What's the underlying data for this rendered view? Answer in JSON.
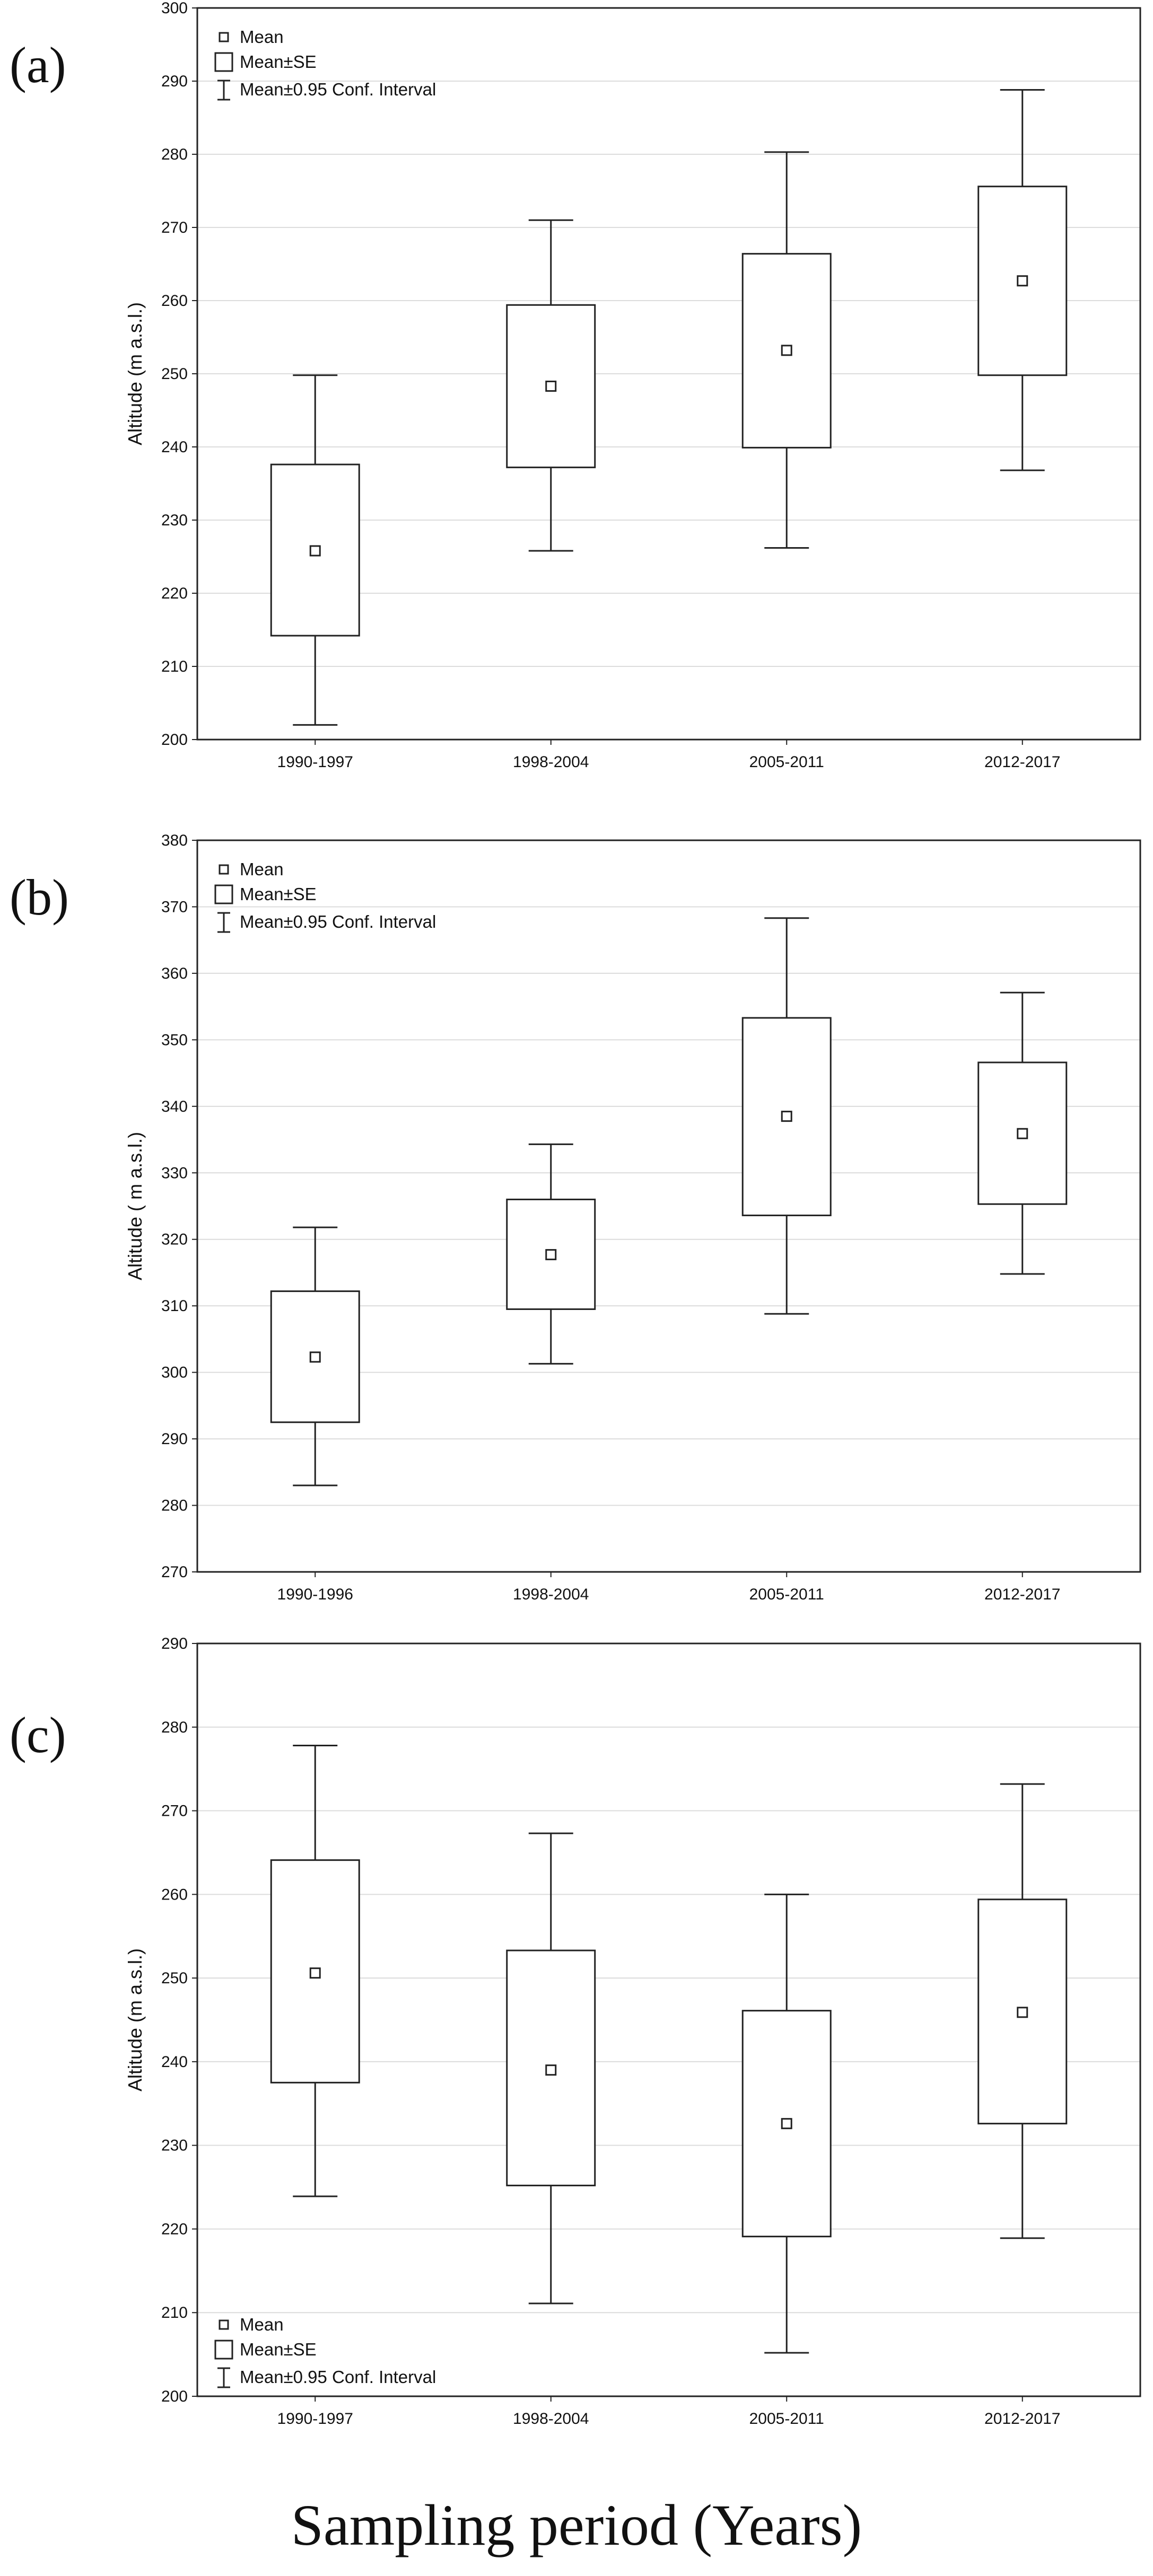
{
  "chart_data": [
    {
      "type": "box",
      "panel_label": "(a)",
      "ylabel": "Altitude (m a.s.l.)",
      "ylim": [
        200,
        300
      ],
      "yticks": [
        "200",
        "210",
        "220",
        "230",
        "240",
        "250",
        "260",
        "270",
        "280",
        "290",
        "300"
      ],
      "grid": true,
      "legend_position": "top-left",
      "legend": [
        "Mean",
        "Mean±SE",
        "Mean±0.95 Conf. Interval"
      ],
      "categories": [
        "1990-1997",
        "1998-2004",
        "2005-2011",
        "2012-2017"
      ],
      "mean": [
        225.8,
        248.3,
        253.2,
        262.7
      ],
      "se_low": [
        214.2,
        237.2,
        239.9,
        249.8
      ],
      "se_high": [
        237.6,
        259.4,
        266.4,
        275.6
      ],
      "ci_low": [
        202.0,
        225.8,
        226.2,
        236.8
      ],
      "ci_high": [
        249.8,
        271.0,
        280.3,
        288.8
      ]
    },
    {
      "type": "box",
      "panel_label": "(b)",
      "ylabel": "Altitude ( m a.s.l.)",
      "ylim": [
        270,
        380
      ],
      "yticks": [
        "270",
        "280",
        "290",
        "300",
        "310",
        "320",
        "330",
        "340",
        "350",
        "360",
        "370",
        "380"
      ],
      "grid": true,
      "legend_position": "top-left",
      "legend": [
        "Mean",
        "Mean±SE",
        "Mean±0.95 Conf. Interval"
      ],
      "categories": [
        "1990-1996",
        "1998-2004",
        "2005-2011",
        "2012-2017"
      ],
      "mean": [
        302.3,
        317.7,
        338.5,
        335.9
      ],
      "se_low": [
        292.5,
        309.5,
        323.6,
        325.3
      ],
      "se_high": [
        312.2,
        326.0,
        353.3,
        346.6
      ],
      "ci_low": [
        283.0,
        301.3,
        308.8,
        314.8
      ],
      "ci_high": [
        321.8,
        334.3,
        368.3,
        357.1
      ]
    },
    {
      "type": "box",
      "panel_label": "(c)",
      "ylabel": "Altitude (m a.s.l.)",
      "ylim": [
        200,
        290
      ],
      "yticks": [
        "200",
        "210",
        "220",
        "230",
        "240",
        "250",
        "260",
        "270",
        "280",
        "290"
      ],
      "grid": true,
      "legend_position": "bottom-left",
      "legend": [
        "Mean",
        "Mean±SE",
        "Mean±0.95 Conf. Interval"
      ],
      "categories": [
        "1990-1997",
        "1998-2004",
        "2005-2011",
        "2012-2017"
      ],
      "mean": [
        250.6,
        239.0,
        232.6,
        245.9
      ],
      "se_low": [
        237.5,
        225.2,
        219.1,
        232.6
      ],
      "se_high": [
        264.1,
        253.3,
        246.1,
        259.4
      ],
      "ci_low": [
        223.9,
        211.1,
        205.2,
        218.9
      ],
      "ci_high": [
        277.8,
        267.3,
        260.0,
        273.2
      ]
    }
  ],
  "xlabel": "Sampling period (Years)"
}
